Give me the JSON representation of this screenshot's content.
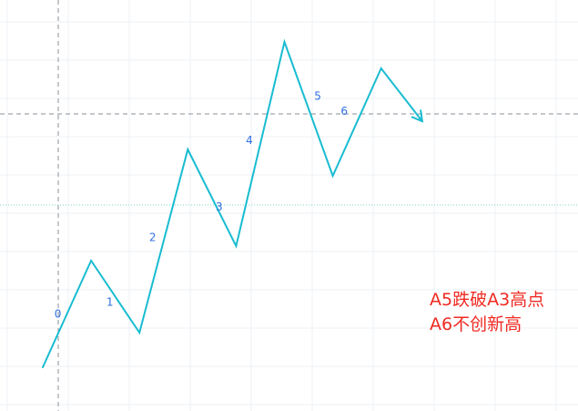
{
  "chart_data": {
    "type": "line",
    "title": "",
    "xlabel": "",
    "ylabel": "",
    "grid": true,
    "series": [
      {
        "color": "#18bcd1",
        "points": [
          {
            "x": 0,
            "y": 0
          },
          {
            "x": 1,
            "y": 117
          },
          {
            "x": 2,
            "y": 38
          },
          {
            "x": 3,
            "y": 239
          },
          {
            "x": 4,
            "y": 133
          },
          {
            "x": 5,
            "y": 357
          },
          {
            "x": 6,
            "y": 210
          },
          {
            "x": 7,
            "y": 328
          },
          {
            "x": 7.85,
            "y": 270
          }
        ]
      }
    ],
    "point_labels": [
      "0",
      "1",
      "2",
      "3",
      "4",
      "5",
      "6"
    ],
    "end_marker": "arrow",
    "annotations": [
      "A5跌破A3高点",
      "A6不创新高"
    ],
    "annotation_color": "#ef2a22"
  }
}
